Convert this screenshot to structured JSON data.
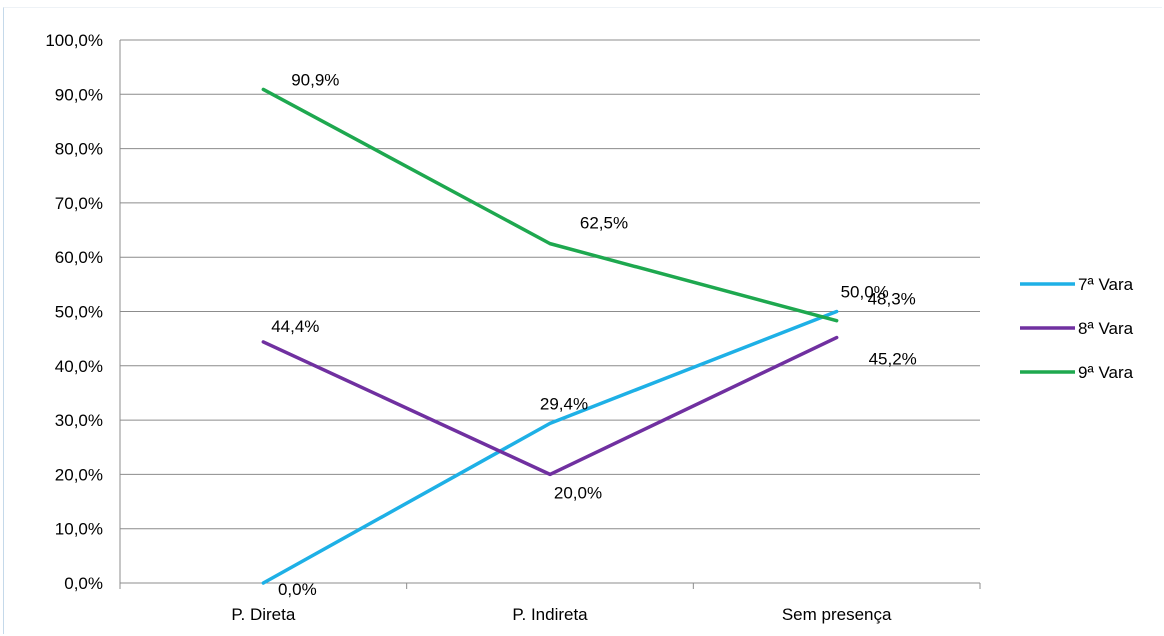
{
  "chart_data": {
    "type": "line",
    "categories": [
      "P. Direta",
      "P. Indireta",
      "Sem presença"
    ],
    "series": [
      {
        "name": "7ª Vara",
        "values": [
          0.0,
          29.4,
          50.0
        ],
        "labels": [
          "0,0%",
          "29,4%",
          "50,0%"
        ],
        "color": "#1eb0e6"
      },
      {
        "name": "8ª Vara",
        "values": [
          44.4,
          20.0,
          45.2
        ],
        "labels": [
          "44,4%",
          "20,0%",
          "45,2%"
        ],
        "color": "#7030a0"
      },
      {
        "name": "9ª Vara",
        "values": [
          90.9,
          62.5,
          48.3
        ],
        "labels": [
          "90,9%",
          "62,5%",
          "48,3%"
        ],
        "color": "#1ea84f"
      }
    ],
    "y_ticks": [
      "0,0%",
      "10,0%",
      "20,0%",
      "30,0%",
      "40,0%",
      "50,0%",
      "60,0%",
      "70,0%",
      "80,0%",
      "90,0%",
      "100,0%"
    ],
    "ylim": [
      0,
      100
    ],
    "grid": true,
    "legend": "right"
  }
}
